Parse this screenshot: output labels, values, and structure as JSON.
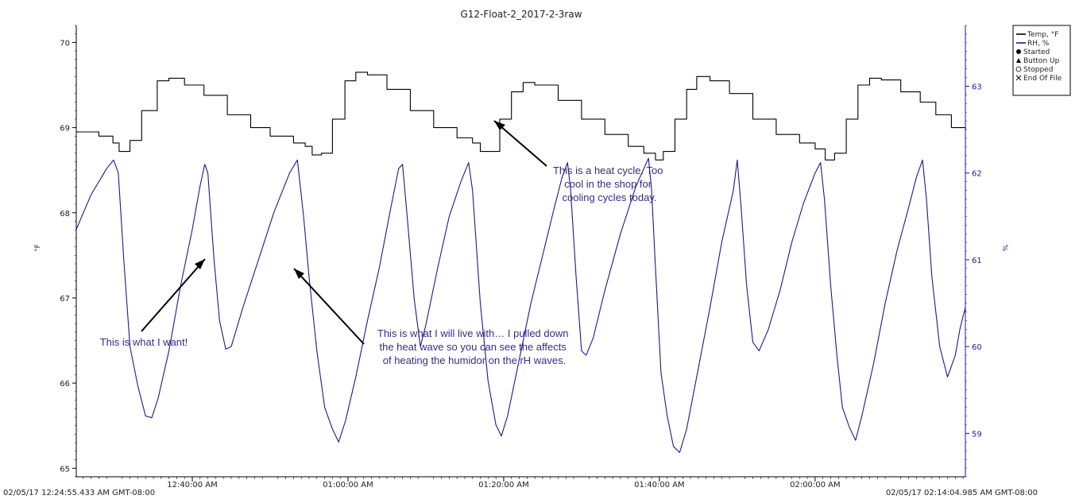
{
  "chart_data": {
    "type": "line",
    "title": "G12-Float-2_2017-2-3raw",
    "ylabel_left": "°F",
    "ylabel_right": "%",
    "ylim_left": [
      64.9,
      70.2
    ],
    "ylim_right": [
      58.5,
      63.7
    ],
    "yticks_left": [
      "65",
      "66",
      "67",
      "68",
      "69",
      "70"
    ],
    "yticks_right": [
      "59",
      "60",
      "61",
      "62",
      "63"
    ],
    "xlim_min": [
      -4.9,
      109.3
    ],
    "x_unit": "minutes after 12:30:00 AM",
    "xticks": [
      {
        "at": 10,
        "label": "12:40:00 AM"
      },
      {
        "at": 30,
        "label": "01:00:00 AM"
      },
      {
        "at": 50,
        "label": "01:20:00 AM"
      },
      {
        "at": 70,
        "label": "01:40:00 AM"
      },
      {
        "at": 90,
        "label": "02:00:00 AM"
      }
    ],
    "start_label": "02/05/17 12:24:55.433 AM GMT-08:00",
    "end_label": "02/05/17 02:14:04.985 AM GMT-08:00",
    "colors": {
      "temp": "#000000",
      "rh": "#1a1a8c",
      "annotation": "#3a2a8a"
    },
    "legend": {
      "position": "top-right",
      "entries": [
        {
          "label": "Temp, °F",
          "marker": "line",
          "color": "#000000"
        },
        {
          "label": "RH, %",
          "marker": "line",
          "color": "#1a1a8c"
        },
        {
          "label": "Started",
          "marker": "filled-circle"
        },
        {
          "label": "Button Up",
          "marker": "filled-triangle"
        },
        {
          "label": "Stopped",
          "marker": "open-circle"
        },
        {
          "label": "End Of File",
          "marker": "x-cross"
        }
      ]
    },
    "series": [
      {
        "name": "Temp, °F",
        "axis": "left",
        "points": [
          [
            -4.9,
            68.95
          ],
          [
            -2.0,
            68.9
          ],
          [
            -0.2,
            68.82
          ],
          [
            0.6,
            68.72
          ],
          [
            2.0,
            68.85
          ],
          [
            3.5,
            69.2
          ],
          [
            5.5,
            69.55
          ],
          [
            7.0,
            69.58
          ],
          [
            9.0,
            69.5
          ],
          [
            11.5,
            69.38
          ],
          [
            14.5,
            69.15
          ],
          [
            17.5,
            69.0
          ],
          [
            20.0,
            68.9
          ],
          [
            23.0,
            68.82
          ],
          [
            24.5,
            68.78
          ],
          [
            25.4,
            68.68
          ],
          [
            26.6,
            68.7
          ],
          [
            28.0,
            69.1
          ],
          [
            29.6,
            69.55
          ],
          [
            31.0,
            69.65
          ],
          [
            32.5,
            69.62
          ],
          [
            35.0,
            69.45
          ],
          [
            38.0,
            69.2
          ],
          [
            41.0,
            69.0
          ],
          [
            44.0,
            68.88
          ],
          [
            46.0,
            68.82
          ],
          [
            47.0,
            68.72
          ],
          [
            48.5,
            68.72
          ],
          [
            49.5,
            69.1
          ],
          [
            51.0,
            69.42
          ],
          [
            52.5,
            69.53
          ],
          [
            54.0,
            69.5
          ],
          [
            57.0,
            69.32
          ],
          [
            60.0,
            69.1
          ],
          [
            63.0,
            68.92
          ],
          [
            66.0,
            68.78
          ],
          [
            68.0,
            68.7
          ],
          [
            69.5,
            68.62
          ],
          [
            70.5,
            68.72
          ],
          [
            72.0,
            69.1
          ],
          [
            73.5,
            69.45
          ],
          [
            74.8,
            69.6
          ],
          [
            76.5,
            69.55
          ],
          [
            79.0,
            69.4
          ],
          [
            82.0,
            69.1
          ],
          [
            85.0,
            68.92
          ],
          [
            88.0,
            68.82
          ],
          [
            90.0,
            68.75
          ],
          [
            91.3,
            68.62
          ],
          [
            92.5,
            68.7
          ],
          [
            94.0,
            69.1
          ],
          [
            95.5,
            69.5
          ],
          [
            97.0,
            69.58
          ],
          [
            98.5,
            69.56
          ],
          [
            101.0,
            69.42
          ],
          [
            103.5,
            69.3
          ],
          [
            105.5,
            69.15
          ],
          [
            107.5,
            69.0
          ],
          [
            109.3,
            68.98
          ]
        ]
      },
      {
        "name": "RH, %",
        "axis": "right",
        "points": [
          [
            -4.9,
            61.35
          ],
          [
            -3.0,
            61.75
          ],
          [
            -1.0,
            62.05
          ],
          [
            -0.1,
            62.15
          ],
          [
            0.5,
            62.0
          ],
          [
            1.2,
            61.0
          ],
          [
            2.0,
            60.0
          ],
          [
            3.0,
            59.55
          ],
          [
            4.0,
            59.2
          ],
          [
            4.8,
            59.18
          ],
          [
            5.6,
            59.4
          ],
          [
            7.0,
            59.95
          ],
          [
            8.5,
            60.7
          ],
          [
            10.0,
            61.35
          ],
          [
            11.0,
            61.85
          ],
          [
            11.6,
            62.1
          ],
          [
            12.0,
            62.0
          ],
          [
            12.8,
            61.0
          ],
          [
            13.5,
            60.3
          ],
          [
            14.3,
            59.97
          ],
          [
            15.0,
            60.0
          ],
          [
            16.5,
            60.45
          ],
          [
            18.5,
            61.0
          ],
          [
            20.5,
            61.55
          ],
          [
            22.5,
            62.0
          ],
          [
            23.5,
            62.15
          ],
          [
            24.3,
            61.5
          ],
          [
            25.0,
            60.8
          ],
          [
            26.0,
            59.95
          ],
          [
            27.0,
            59.3
          ],
          [
            28.0,
            59.05
          ],
          [
            28.8,
            58.9
          ],
          [
            29.7,
            59.15
          ],
          [
            31.0,
            59.65
          ],
          [
            32.5,
            60.3
          ],
          [
            34.0,
            60.9
          ],
          [
            35.5,
            61.6
          ],
          [
            36.5,
            62.05
          ],
          [
            37.0,
            62.1
          ],
          [
            37.5,
            61.6
          ],
          [
            38.5,
            60.55
          ],
          [
            39.3,
            60.0
          ],
          [
            40.0,
            60.25
          ],
          [
            41.5,
            60.9
          ],
          [
            43.0,
            61.5
          ],
          [
            44.5,
            61.9
          ],
          [
            45.5,
            62.12
          ],
          [
            46.0,
            61.8
          ],
          [
            47.0,
            60.5
          ],
          [
            48.0,
            59.6
          ],
          [
            49.0,
            59.1
          ],
          [
            49.7,
            58.97
          ],
          [
            50.5,
            59.2
          ],
          [
            52.0,
            59.85
          ],
          [
            53.5,
            60.5
          ],
          [
            55.0,
            61.05
          ],
          [
            56.5,
            61.6
          ],
          [
            57.5,
            61.95
          ],
          [
            58.2,
            62.12
          ],
          [
            58.6,
            61.8
          ],
          [
            59.3,
            60.8
          ],
          [
            60.0,
            59.95
          ],
          [
            60.6,
            59.9
          ],
          [
            61.5,
            60.1
          ],
          [
            63.0,
            60.65
          ],
          [
            65.0,
            61.3
          ],
          [
            67.0,
            61.85
          ],
          [
            68.0,
            62.05
          ],
          [
            68.6,
            62.17
          ],
          [
            69.0,
            61.8
          ],
          [
            69.5,
            60.9
          ],
          [
            70.2,
            59.7
          ],
          [
            71.0,
            59.2
          ],
          [
            71.8,
            58.85
          ],
          [
            72.6,
            58.78
          ],
          [
            73.5,
            59.05
          ],
          [
            75.0,
            59.75
          ],
          [
            76.5,
            60.45
          ],
          [
            78.0,
            61.2
          ],
          [
            79.5,
            61.8
          ],
          [
            80.0,
            62.15
          ],
          [
            80.5,
            61.6
          ],
          [
            81.2,
            60.7
          ],
          [
            82.0,
            60.05
          ],
          [
            82.8,
            59.95
          ],
          [
            84.0,
            60.2
          ],
          [
            85.5,
            60.65
          ],
          [
            87.0,
            61.2
          ],
          [
            88.5,
            61.65
          ],
          [
            90.0,
            62.0
          ],
          [
            90.7,
            62.12
          ],
          [
            91.2,
            61.7
          ],
          [
            92.0,
            60.7
          ],
          [
            92.8,
            59.9
          ],
          [
            93.5,
            59.3
          ],
          [
            94.4,
            59.07
          ],
          [
            95.2,
            58.92
          ],
          [
            96.0,
            59.2
          ],
          [
            97.5,
            59.8
          ],
          [
            99.0,
            60.5
          ],
          [
            100.5,
            61.1
          ],
          [
            102.0,
            61.6
          ],
          [
            103.0,
            61.95
          ],
          [
            103.8,
            62.15
          ],
          [
            104.3,
            61.7
          ],
          [
            105.0,
            60.8
          ],
          [
            106.0,
            60.0
          ],
          [
            107.0,
            59.65
          ],
          [
            108.0,
            59.9
          ],
          [
            108.6,
            60.2
          ],
          [
            109.0,
            60.35
          ],
          [
            109.3,
            60.45
          ]
        ]
      }
    ],
    "annotations": [
      {
        "lines": [
          "This is what I want!"
        ]
      },
      {
        "lines": [
          "This is what I will live with… I pulled down",
          "the heat wave so you can see the affects",
          "of heating the humidor on the rH waves."
        ]
      },
      {
        "lines": [
          "This is a heat cycle. Too",
          "cool in the shop for",
          "cooling cycles today."
        ]
      }
    ]
  }
}
